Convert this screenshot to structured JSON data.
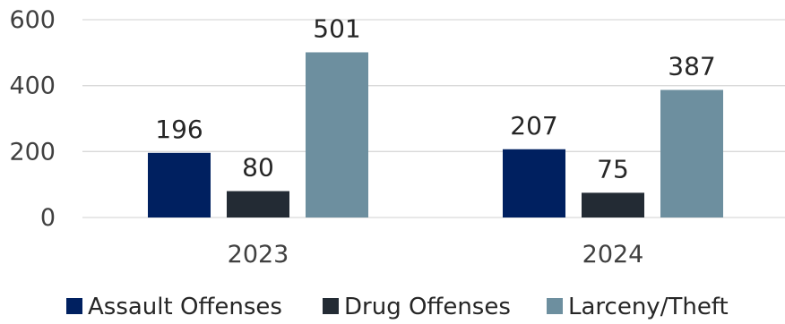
{
  "chart_data": {
    "type": "bar",
    "categories": [
      "2023",
      "2024"
    ],
    "series": [
      {
        "name": "Assault Offenses",
        "values": [
          196,
          207
        ],
        "color": "#002060"
      },
      {
        "name": "Drug Offenses",
        "values": [
          80,
          75
        ],
        "color": "#232b34"
      },
      {
        "name": "Larceny/Theft",
        "values": [
          501,
          387
        ],
        "color": "#6d8f9f"
      }
    ],
    "yticks": [
      "0",
      "200",
      "400",
      "600"
    ],
    "ylim": [
      0,
      600
    ],
    "grid": true,
    "legend": "bottom"
  }
}
